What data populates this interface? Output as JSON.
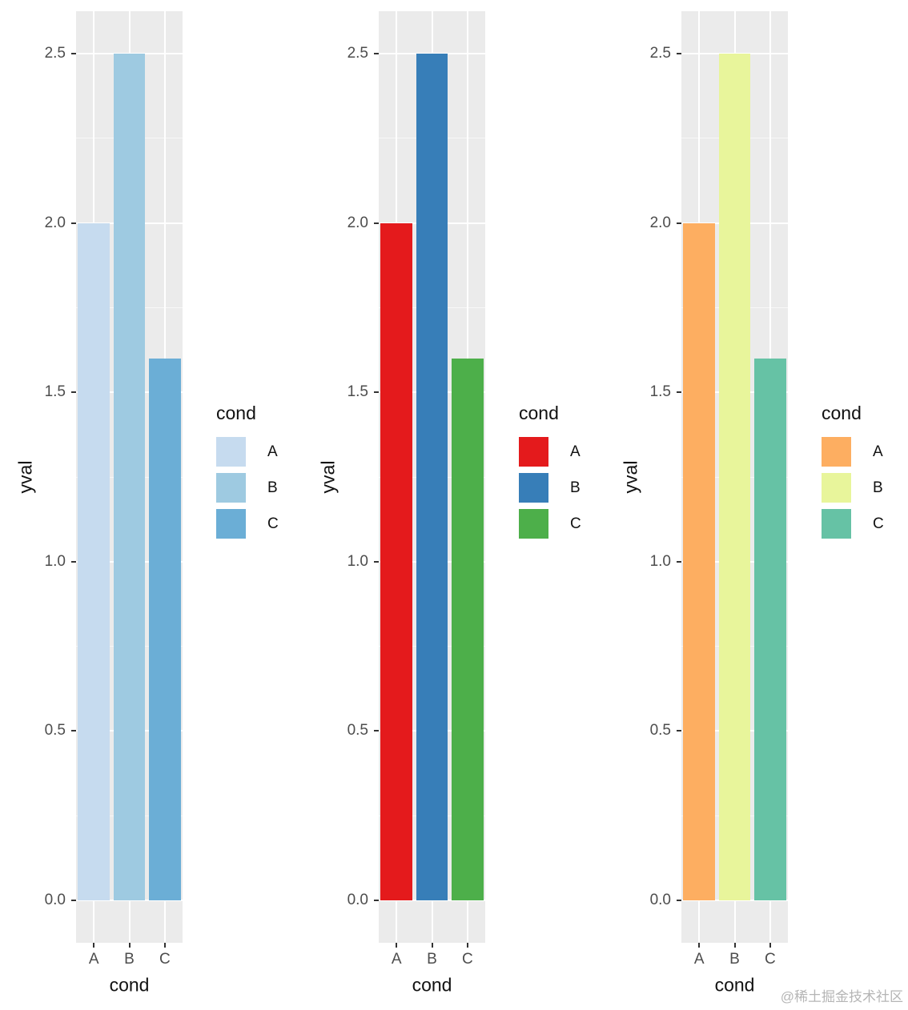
{
  "watermark": "@稀土掘金技术社区",
  "chart_data": [
    {
      "type": "bar",
      "categories": [
        "A",
        "B",
        "C"
      ],
      "values": [
        2.0,
        2.5,
        1.6
      ],
      "title": "",
      "xlabel": "cond",
      "ylabel": "yval",
      "ylim": [
        0,
        2.5
      ],
      "yticks": [
        "0.0",
        "0.5",
        "1.0",
        "1.5",
        "2.0",
        "2.5"
      ],
      "ytick_values": [
        0,
        0.5,
        1.0,
        1.5,
        2.0,
        2.5
      ],
      "legend": {
        "title": "cond",
        "entries": [
          "A",
          "B",
          "C"
        ],
        "position": "right"
      },
      "palette": {
        "name": "blues",
        "colors": [
          "#C6DBEF",
          "#9ECAE1",
          "#6BAED6"
        ]
      },
      "panel_bg": "#EBEBEB",
      "grid_color": "#FFFFFF",
      "grid": "on"
    },
    {
      "type": "bar",
      "categories": [
        "A",
        "B",
        "C"
      ],
      "values": [
        2.0,
        2.5,
        1.6
      ],
      "title": "",
      "xlabel": "cond",
      "ylabel": "yval",
      "ylim": [
        0,
        2.5
      ],
      "yticks": [
        "0.0",
        "0.5",
        "1.0",
        "1.5",
        "2.0",
        "2.5"
      ],
      "ytick_values": [
        0,
        0.5,
        1.0,
        1.5,
        2.0,
        2.5
      ],
      "legend": {
        "title": "cond",
        "entries": [
          "A",
          "B",
          "C"
        ],
        "position": "right"
      },
      "palette": {
        "name": "set1",
        "colors": [
          "#E41A1C",
          "#377EB8",
          "#4DAF4A"
        ]
      },
      "panel_bg": "#EBEBEB",
      "grid_color": "#FFFFFF",
      "grid": "on"
    },
    {
      "type": "bar",
      "categories": [
        "A",
        "B",
        "C"
      ],
      "values": [
        2.0,
        2.5,
        1.6
      ],
      "title": "",
      "xlabel": "cond",
      "ylabel": "yval",
      "ylim": [
        0,
        2.5
      ],
      "yticks": [
        "0.0",
        "0.5",
        "1.0",
        "1.5",
        "2.0",
        "2.5"
      ],
      "ytick_values": [
        0,
        0.5,
        1.0,
        1.5,
        2.0,
        2.5
      ],
      "legend": {
        "title": "cond",
        "entries": [
          "A",
          "B",
          "C"
        ],
        "position": "right"
      },
      "palette": {
        "name": "spectral",
        "colors": [
          "#FDAE61",
          "#E8F59B",
          "#66C2A5"
        ]
      },
      "panel_bg": "#EBEBEB",
      "grid_color": "#FFFFFF",
      "grid": "on"
    }
  ]
}
